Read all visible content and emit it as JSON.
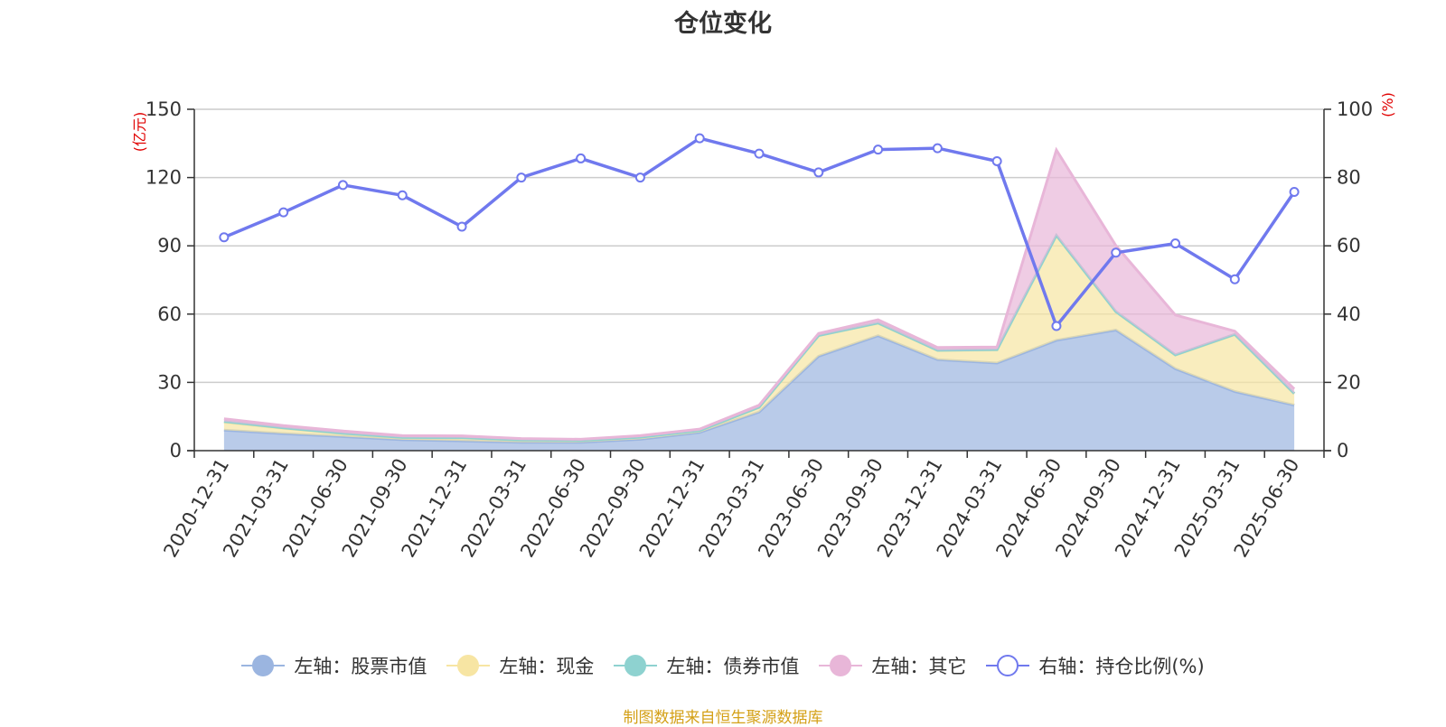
{
  "title": "仓位变化",
  "source": "制图数据来自恒生聚源数据库",
  "left_unit": "(亿元)",
  "right_unit": "(%)",
  "chart_data": {
    "type": "area",
    "categories": [
      "2020-12-31",
      "2021-03-31",
      "2021-06-30",
      "2021-09-30",
      "2021-12-31",
      "2022-03-31",
      "2022-06-30",
      "2022-09-30",
      "2022-12-31",
      "2023-03-31",
      "2023-06-30",
      "2023-09-30",
      "2023-12-31",
      "2024-03-31",
      "2024-06-30",
      "2024-09-30",
      "2024-12-31",
      "2025-03-31",
      "2025-06-30"
    ],
    "left_axis": {
      "min": 0,
      "max": 150,
      "ticks": [
        0,
        30,
        60,
        90,
        120,
        150
      ]
    },
    "right_axis": {
      "min": 0,
      "max": 100,
      "ticks": [
        0,
        20,
        40,
        60,
        80,
        100
      ]
    },
    "grid": true,
    "legend_position": "bottom",
    "stacked_series": [
      {
        "name": "左轴：股票市值",
        "color": "#9bb5e0",
        "values": [
          9.0,
          7.5,
          6.2,
          4.8,
          4.3,
          3.7,
          3.7,
          5.0,
          8.0,
          17.0,
          41.5,
          50.5,
          40.0,
          38.5,
          48.5,
          53.0,
          36.0,
          26.0,
          20.0
        ]
      },
      {
        "name": "左轴：现金",
        "color": "#f7e5a3",
        "values": [
          3.5,
          2.3,
          1.3,
          0.9,
          1.3,
          0.9,
          0.7,
          0.8,
          0.7,
          2.0,
          9.0,
          5.5,
          4.0,
          5.8,
          46.0,
          8.0,
          6.0,
          25.0,
          5.0
        ]
      },
      {
        "name": "左轴：债券市值",
        "color": "#8ed2d0",
        "values": [
          0.3,
          0.2,
          0.1,
          0.1,
          0.1,
          0.1,
          0.1,
          0.1,
          0.1,
          0.1,
          0.1,
          0.1,
          0.1,
          0.1,
          0.1,
          0.1,
          0.1,
          0.1,
          0.1
        ]
      },
      {
        "name": "左轴：其它",
        "color": "#e8b6d8",
        "values": [
          1.2,
          1.0,
          1.0,
          0.8,
          0.8,
          0.6,
          0.5,
          0.7,
          0.7,
          0.9,
          0.9,
          1.4,
          1.2,
          1.1,
          37.5,
          29.0,
          17.5,
          1.4,
          2.0
        ]
      }
    ],
    "line_series": {
      "name": "右轴：持仓比例(%)",
      "color": "#7079ee",
      "axis": "right",
      "values": [
        62.5,
        69.8,
        77.8,
        74.8,
        65.6,
        80.0,
        85.6,
        80.0,
        91.5,
        87.0,
        81.5,
        88.2,
        88.6,
        84.8,
        36.5,
        58.0,
        60.7,
        50.2,
        75.8
      ]
    }
  }
}
